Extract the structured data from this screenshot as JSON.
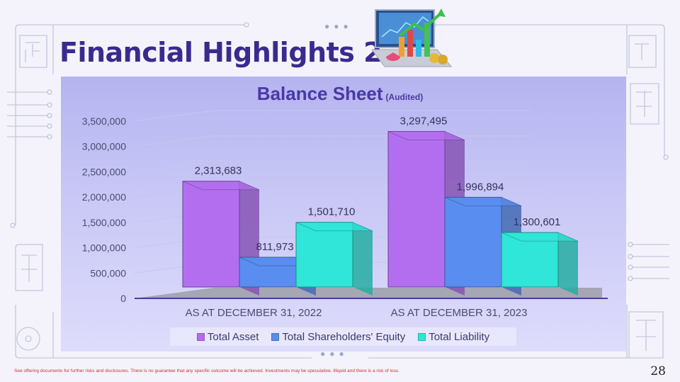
{
  "slide": {
    "title": "Financial Highlights 2",
    "disclaimer": "See offering documents for further risks and disclosures. There is no guarantee that any specific outcome will be achieved. Investments may be speculative, illiquid and there is a risk of loss.",
    "page_number": "28",
    "image_icon": "laptop-chart-illustration"
  },
  "chart_data": {
    "type": "bar",
    "title": "Balance Sheet",
    "subtitle": "(Audited)",
    "categories": [
      "AS AT DECEMBER 31, 2022",
      "AS AT DECEMBER 31, 2023"
    ],
    "series": [
      {
        "name": "Total Asset",
        "values": [
          2313683,
          3297495
        ],
        "labels": [
          "2,313,683",
          "3,297,495"
        ],
        "color": "#b36ef0"
      },
      {
        "name": "Total Shareholders' Equity",
        "values": [
          811973,
          1996894
        ],
        "labels": [
          "811,973",
          "1,996,894"
        ],
        "color": "#5a8df0"
      },
      {
        "name": "Total Liability",
        "values": [
          1501710,
          1300601
        ],
        "labels": [
          "1,501,710",
          "1,300,601"
        ],
        "color": "#2fe6d8"
      }
    ],
    "y_ticks": [
      "0",
      "500,000",
      "1,000,000",
      "1,500,000",
      "2,000,000",
      "2,500,000",
      "3,000,000",
      "3,500,000"
    ],
    "ylim": [
      0,
      3500000
    ],
    "grid": true,
    "legend_position": "bottom"
  }
}
